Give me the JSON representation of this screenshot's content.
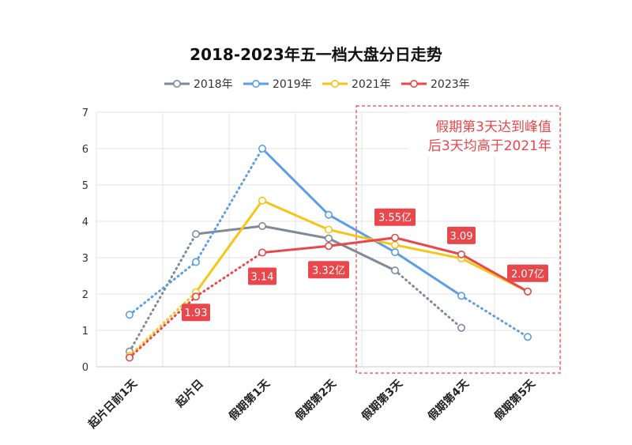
{
  "chart_data": {
    "type": "line",
    "title": "2018-2023年五一档大盘分日走势",
    "categories": [
      "起片日前1天",
      "起片日",
      "假期第1天",
      "假期第2天",
      "假期第3天",
      "假期第4天",
      "假期第5天"
    ],
    "ylim": [
      0,
      7
    ],
    "yticks": [
      "0",
      "1",
      "2",
      "3",
      "4",
      "5",
      "6",
      "7"
    ],
    "grid": true,
    "legend": "top",
    "series": [
      {
        "name": "2018年",
        "color": "#7f8a99",
        "values": [
          0.42,
          3.65,
          3.87,
          3.53,
          2.65,
          1.07,
          null
        ]
      },
      {
        "name": "2019年",
        "color": "#5b9ee6",
        "values": [
          1.43,
          2.88,
          6.0,
          4.18,
          3.15,
          1.95,
          0.82
        ]
      },
      {
        "name": "2021年",
        "color": "#f5c518",
        "values": [
          0.3,
          2.05,
          4.57,
          3.77,
          3.35,
          2.98,
          2.07
        ]
      },
      {
        "name": "2023年",
        "color": "#e8474c",
        "values": [
          0.25,
          1.93,
          3.14,
          3.32,
          3.55,
          3.09,
          2.07
        ]
      }
    ],
    "data_labels": [
      "1.93",
      "3.14",
      "3.32亿",
      "3.55亿",
      "3.09",
      "2.07亿"
    ],
    "annotation": {
      "line1": "假期第3天达到峰值",
      "line2": "后3天均高于2021年",
      "color": "#e8474c"
    }
  }
}
